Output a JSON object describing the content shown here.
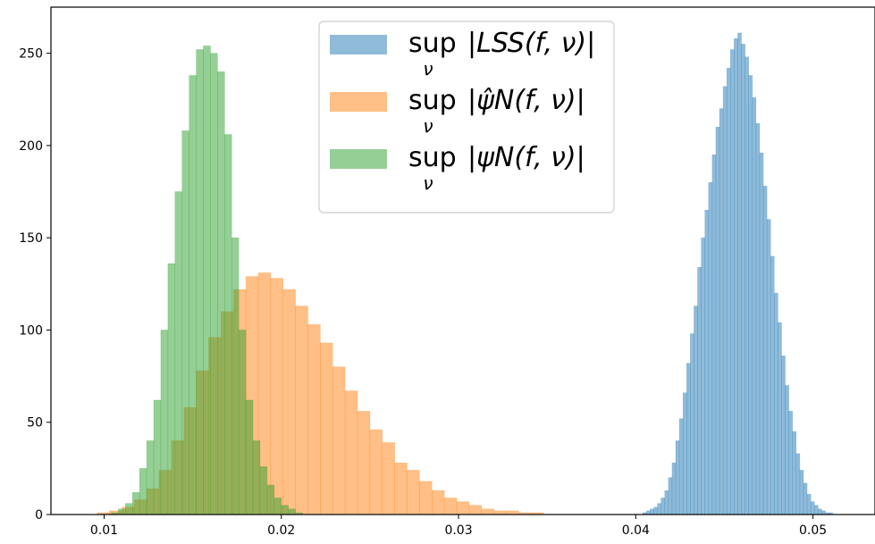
{
  "chart_data": {
    "type": "histogram",
    "title": "",
    "xlabel": "",
    "ylabel": "",
    "xlim": [
      0.007,
      0.0535
    ],
    "ylim": [
      0,
      275
    ],
    "xticks": [
      0.01,
      0.02,
      0.03,
      0.04,
      0.05
    ],
    "xtick_labels": [
      "0.01",
      "0.02",
      "0.03",
      "0.04",
      "0.05"
    ],
    "yticks": [
      0,
      50,
      100,
      150,
      200,
      250
    ],
    "ytick_labels": [
      "0",
      "50",
      "100",
      "150",
      "200",
      "250"
    ],
    "grid": false,
    "legend_placement": "top-center",
    "series": [
      {
        "name": "sup |LSS(f, ν)|",
        "legend_main": "sup",
        "legend_sub": "ν",
        "legend_expr": "|LSS(f, ν)|",
        "color": "#1f77b4",
        "alpha": 0.5,
        "bin_start": 0.0404,
        "bin_width": 0.000206,
        "counts": [
          1,
          2,
          3,
          4,
          6,
          9,
          13,
          20,
          28,
          40,
          52,
          66,
          82,
          98,
          113,
          134,
          150,
          165,
          180,
          195,
          210,
          220,
          232,
          242,
          252,
          258,
          261,
          255,
          248,
          238,
          226,
          212,
          196,
          178,
          160,
          140,
          120,
          104,
          86,
          70,
          56,
          45,
          33,
          24,
          17,
          11,
          7,
          5,
          3,
          2,
          1,
          1
        ]
      },
      {
        "name": "sup |ψ̂_N(f, ν)|",
        "legend_main": "sup",
        "legend_sub": "ν",
        "legend_expr": "|ψ̂N(f, ν)|",
        "color": "#ff7f0e",
        "alpha": 0.5,
        "bin_start": 0.0096,
        "bin_width": 0.0007,
        "counts": [
          1,
          2,
          4,
          8,
          14,
          24,
          40,
          58,
          78,
          96,
          110,
          122,
          129,
          131,
          128,
          122,
          113,
          103,
          93,
          80,
          67,
          56,
          46,
          39,
          28,
          24,
          18,
          13,
          9,
          7,
          5,
          3,
          2,
          2,
          1,
          1
        ]
      },
      {
        "name": "sup |ψ_N(f, ν)|",
        "legend_main": "sup",
        "legend_sub": "ν",
        "legend_expr": "|ψN(f, ν)|",
        "color": "#2ca02c",
        "alpha": 0.5,
        "bin_start": 0.0104,
        "bin_width": 0.0004,
        "counts": [
          1,
          3,
          6,
          12,
          25,
          40,
          62,
          100,
          136,
          175,
          208,
          238,
          252,
          254,
          250,
          240,
          206,
          150,
          100,
          62,
          40,
          26,
          16,
          9,
          5,
          3,
          1
        ]
      }
    ]
  }
}
